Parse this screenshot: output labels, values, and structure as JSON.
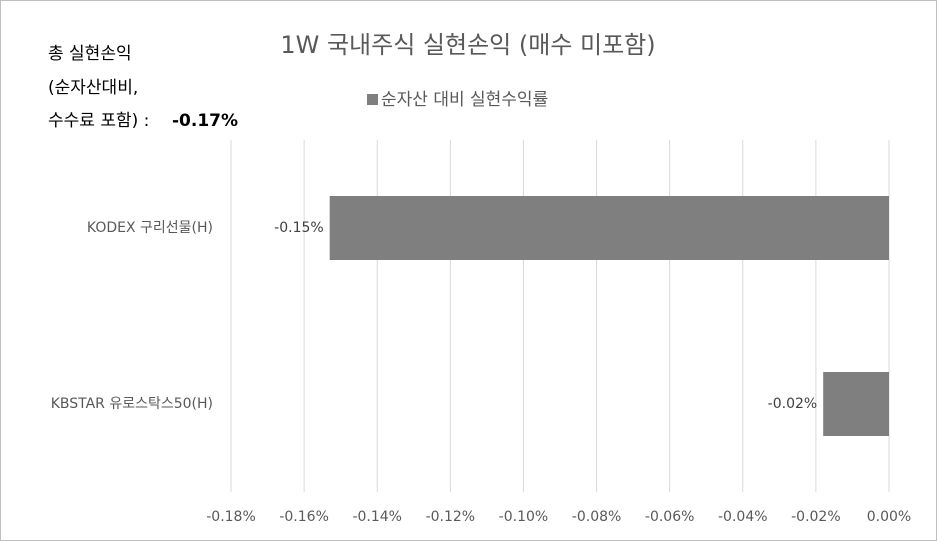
{
  "chart_data": {
    "type": "hbar",
    "title": "1W 국내주식 실현손익 (매수 미포함)",
    "annotation": {
      "lines": [
        "총 실현손익",
        "(순자산대비,",
        "수수료 포함) :"
      ],
      "total": "-0.17%"
    },
    "categories": [
      "KODEX 구리선물(H)",
      "KBSTAR 유로스탁스50(H)"
    ],
    "series": [
      {
        "name": "순자산 대비 실현수익률",
        "color": "#7f7f7f",
        "values": [
          -0.153,
          -0.018
        ],
        "value_labels": [
          "-0.15%",
          "-0.02%"
        ]
      }
    ],
    "xlim": [
      -0.18,
      0
    ],
    "xticks": [
      {
        "value": -0.18,
        "label": "-0.18%"
      },
      {
        "value": -0.16,
        "label": "-0.16%"
      },
      {
        "value": -0.14,
        "label": "-0.14%"
      },
      {
        "value": -0.12,
        "label": "-0.12%"
      },
      {
        "value": -0.1,
        "label": "-0.10%"
      },
      {
        "value": -0.08,
        "label": "-0.08%"
      },
      {
        "value": -0.06,
        "label": "-0.06%"
      },
      {
        "value": -0.04,
        "label": "-0.04%"
      },
      {
        "value": -0.02,
        "label": "-0.02%"
      },
      {
        "value": 0,
        "label": "0.00%"
      }
    ],
    "grid": true,
    "legend": "top"
  }
}
